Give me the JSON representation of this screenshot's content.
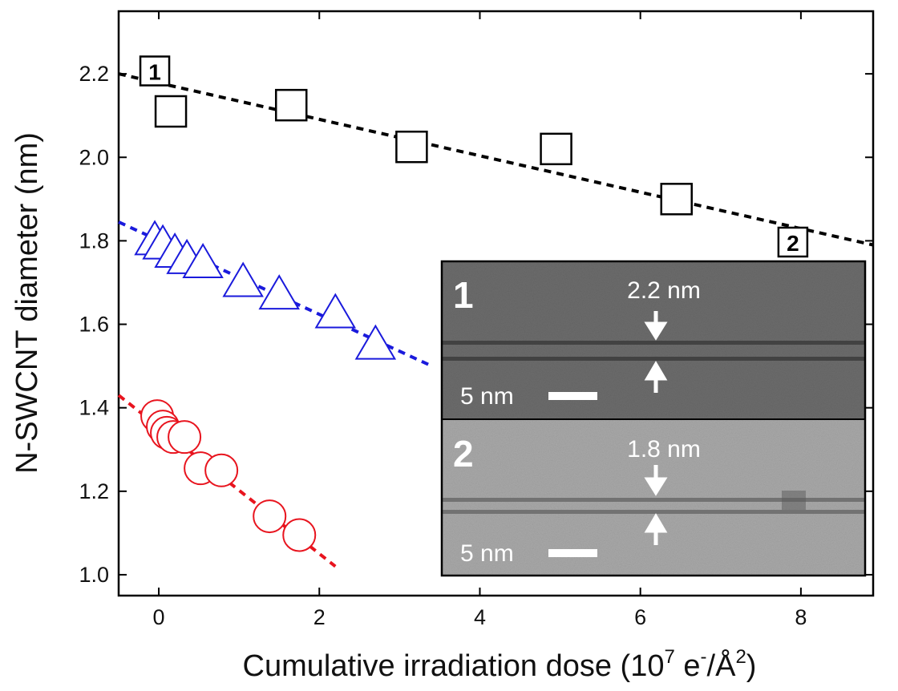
{
  "chart_data": {
    "type": "scatter",
    "title": "",
    "xlabel": "Cumulative irradiation dose (10",
    "xlabel_exp": "7",
    "xlabel_unit_a": " e",
    "xlabel_unit_sup": "-",
    "xlabel_unit_b": "/Å",
    "xlabel_unit_sup2": "2",
    "xlabel_close": ")",
    "ylabel": "N-SWCNT diameter (nm)",
    "xlim": [
      -0.5,
      8.9
    ],
    "ylim": [
      0.95,
      2.35
    ],
    "xticks": [
      0,
      2,
      4,
      6,
      8
    ],
    "xtick_labels": [
      "0",
      "2",
      "4",
      "6",
      "8"
    ],
    "yticks": [
      1.0,
      1.2,
      1.4,
      1.6,
      1.8,
      2.0,
      2.2
    ],
    "ytick_labels": [
      "1.0",
      "1.2",
      "1.4",
      "1.6",
      "1.8",
      "2.0",
      "2.2"
    ],
    "grid": false,
    "series": [
      {
        "marker": "square",
        "color": "#000000",
        "x": [
          0.15,
          1.65,
          3.15,
          4.95,
          6.45
        ],
        "y": [
          2.11,
          2.125,
          2.025,
          2.02,
          1.9
        ],
        "fit": {
          "x": [
            -0.5,
            8.9
          ],
          "y": [
            2.2,
            1.79
          ]
        }
      },
      {
        "marker": "triangle",
        "color": "#1a1adc",
        "x": [
          -0.05,
          0.05,
          0.2,
          0.35,
          0.55,
          1.05,
          1.5,
          2.2,
          2.7
        ],
        "y": [
          1.8,
          1.79,
          1.77,
          1.755,
          1.745,
          1.7,
          1.67,
          1.625,
          1.55
        ],
        "fit": {
          "x": [
            -0.5,
            3.4
          ],
          "y": [
            1.845,
            1.5
          ]
        }
      },
      {
        "marker": "circle",
        "color": "#e8141e",
        "x": [
          -0.02,
          0.05,
          0.1,
          0.18,
          0.32,
          0.52,
          0.78,
          1.38,
          1.75
        ],
        "y": [
          1.38,
          1.355,
          1.34,
          1.33,
          1.33,
          1.255,
          1.25,
          1.14,
          1.095
        ],
        "fit": {
          "x": [
            -0.5,
            2.2
          ],
          "y": [
            1.43,
            1.02
          ]
        }
      }
    ],
    "point_labels": [
      {
        "text": "1",
        "x": -0.05,
        "y": 2.205
      },
      {
        "text": "2",
        "x": 7.9,
        "y": 1.795
      }
    ]
  },
  "inset": {
    "panel_1": {
      "number": "1",
      "diameter_label": "2.2 nm",
      "scale_label": "5 nm",
      "background": "#6c6c6c"
    },
    "panel_2": {
      "number": "2",
      "diameter_label": "1.8 nm",
      "scale_label": "5 nm",
      "background": "#a9a9a9"
    }
  }
}
